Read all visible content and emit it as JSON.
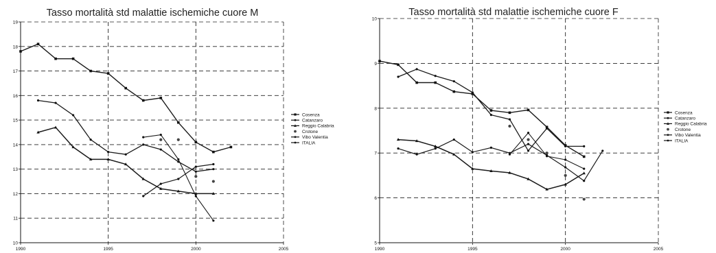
{
  "chart_data": [
    {
      "type": "line",
      "title": "Tasso mortalità std malattie ischemiche cuore M",
      "xlabel": "",
      "ylabel": "",
      "xlim": [
        1990,
        2005
      ],
      "ylim": [
        10,
        19
      ],
      "x_ticks": [
        "1990",
        "1995",
        "2000",
        "2005"
      ],
      "y_ticks": [
        "10",
        "11",
        "12",
        "13",
        "14",
        "15",
        "16",
        "17",
        "18",
        "19"
      ],
      "grid": true,
      "legend_position": "right",
      "series": [
        {
          "name": "Cosenza",
          "x": [
            1990,
            1991,
            1992,
            1993,
            1994,
            1995,
            1996,
            1997,
            1998,
            1999,
            2000,
            2001,
            2002
          ],
          "y": [
            17.8,
            18.1,
            17.5,
            17.5,
            17.0,
            16.9,
            16.3,
            15.8,
            15.9,
            14.9,
            14.1,
            13.7,
            13.9
          ]
        },
        {
          "name": "Catanzaro",
          "x": [
            1991,
            1992,
            1993,
            1994,
            1995,
            1996,
            1997,
            1998,
            1999,
            2000,
            2001
          ],
          "y": [
            15.8,
            15.7,
            15.2,
            14.2,
            13.7,
            13.6,
            14.0,
            13.8,
            13.3,
            12.9,
            13.0
          ]
        },
        {
          "name": "Reggio Calabria",
          "x": [
            1991,
            1992,
            1993,
            1994,
            1995,
            1996,
            1997,
            1998,
            1999,
            2000,
            2001
          ],
          "y": [
            14.5,
            14.7,
            13.9,
            13.4,
            13.4,
            13.2,
            12.6,
            12.2,
            12.1,
            12.0,
            12.0
          ]
        },
        {
          "name": "Crotone",
          "x": [
            1998,
            1999,
            2000,
            2001
          ],
          "y": [
            14.2,
            14.2,
            12.7,
            12.5
          ]
        },
        {
          "name": "Vibo Valentia",
          "x": [
            1997,
            1998,
            1999,
            2000,
            2001
          ],
          "y": [
            14.3,
            14.4,
            13.4,
            11.9,
            10.9
          ]
        },
        {
          "name": "ITALIA",
          "x": [
            1997,
            1998,
            1999,
            2000,
            2001
          ],
          "y": [
            11.9,
            12.4,
            12.6,
            13.1,
            13.2
          ]
        }
      ]
    },
    {
      "type": "line",
      "title": "Tasso mortalità std malattie ischemiche cuore F",
      "xlabel": "",
      "ylabel": "",
      "xlim": [
        1990,
        2005
      ],
      "ylim": [
        5,
        10
      ],
      "x_ticks": [
        "1990",
        "1995",
        "2000",
        "2005"
      ],
      "y_ticks": [
        "5",
        "6",
        "7",
        "8",
        "9",
        "10"
      ],
      "grid": true,
      "legend_position": "right",
      "series": [
        {
          "name": "Cosenza",
          "x": [
            1990,
            1991,
            1992,
            1993,
            1994,
            1995,
            1996,
            1997,
            1998,
            1999,
            2000,
            2001
          ],
          "y": [
            9.05,
            8.97,
            8.57,
            8.57,
            8.37,
            8.32,
            7.95,
            7.9,
            7.96,
            7.58,
            7.17,
            6.92
          ]
        },
        {
          "name": "Catanzaro",
          "x": [
            1991,
            1992,
            1993,
            1994,
            1995,
            1996,
            1997,
            1998,
            1999,
            2000,
            2001
          ],
          "y": [
            8.7,
            8.87,
            8.72,
            8.6,
            8.35,
            7.85,
            7.75,
            7.05,
            7.55,
            7.15,
            7.15
          ]
        },
        {
          "name": "Reggio Calabria",
          "x": [
            1991,
            1992,
            1993,
            1994,
            1995,
            1996,
            1997,
            1998,
            1999,
            2000,
            2001
          ],
          "y": [
            7.3,
            7.27,
            7.15,
            6.97,
            6.65,
            6.6,
            6.56,
            6.42,
            6.19,
            6.3,
            6.55
          ]
        },
        {
          "name": "Crotone",
          "x": [
            1997,
            1998,
            1999,
            2000,
            2001
          ],
          "y": [
            7.6,
            7.3,
            7.0,
            6.5,
            5.97
          ]
        },
        {
          "name": "Vibo Valentia",
          "x": [
            1997,
            1998,
            1999,
            2000,
            2001
          ],
          "y": [
            6.97,
            7.45,
            6.93,
            6.85,
            6.65
          ]
        },
        {
          "name": "ITALIA",
          "x": [
            1991,
            1992,
            1993,
            1994,
            1995,
            1996,
            1997,
            1998,
            1999,
            2000,
            2001,
            2002
          ],
          "y": [
            7.1,
            6.97,
            7.1,
            7.3,
            7.02,
            7.12,
            7.0,
            7.2,
            6.95,
            6.68,
            6.38,
            7.05
          ]
        }
      ]
    }
  ]
}
